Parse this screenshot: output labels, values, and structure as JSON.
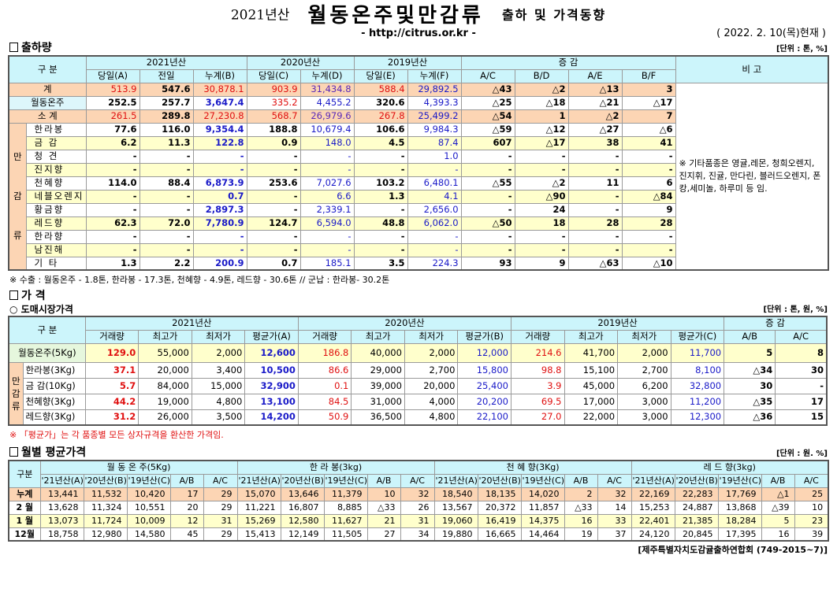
{
  "header": {
    "year": "2021년산",
    "main": "월동온주및만감류",
    "sub": "출하 및 가격동향",
    "url": "- http://citrus.or.kr -",
    "date": "( 2022. 2. 10(목)현재 )"
  },
  "shipment": {
    "section": "출하량",
    "unit": "[단위 : 톤, %]",
    "category_label": "구  분",
    "group_label": "만감류",
    "year_headers": [
      "2021년산",
      "2020년산",
      "2019년산",
      "증   감"
    ],
    "remark_header": "비 고",
    "col_headers": [
      "당일(A)",
      "전일",
      "누계(B)",
      "당일(C)",
      "누계(D)",
      "당일(E)",
      "누계(F)",
      "A/C",
      "B/D",
      "A/E",
      "B/F"
    ],
    "remark": "※ 기타품종은 영귤,레몬, 청희오렌지, 진지휘, 진귤, 만다린, 블러드오렌지, 폰캉,세미놀, 하루미 등 임.",
    "rows": [
      {
        "label": "계",
        "values": [
          "513.9",
          "547.6",
          "30,878.1",
          "903.9",
          "31,434.8",
          "588.4",
          "29,892.5",
          "△43",
          "△2",
          "△13",
          "3"
        ]
      },
      {
        "label": "월동온주",
        "values": [
          "252.5",
          "257.7",
          "3,647.4",
          "335.2",
          "4,455.2",
          "320.6",
          "4,393.3",
          "△25",
          "△18",
          "△21",
          "△17"
        ]
      },
      {
        "label": "소  계",
        "values": [
          "261.5",
          "289.8",
          "27,230.8",
          "568.7",
          "26,979.6",
          "267.8",
          "25,499.2",
          "△54",
          "1",
          "△2",
          "7"
        ]
      },
      {
        "label": "한라봉",
        "values": [
          "77.6",
          "116.0",
          "9,354.4",
          "188.8",
          "10,679.4",
          "106.6",
          "9,984.3",
          "△59",
          "△12",
          "△27",
          "△6"
        ]
      },
      {
        "label": "금  감",
        "values": [
          "6.2",
          "11.3",
          "122.8",
          "0.9",
          "148.0",
          "4.5",
          "87.4",
          "607",
          "△17",
          "38",
          "41"
        ]
      },
      {
        "label": "청  견",
        "values": [
          "-",
          "-",
          "-",
          "-",
          "-",
          "-",
          "1.0",
          "-",
          "-",
          "-",
          "-"
        ]
      },
      {
        "label": "진지향",
        "values": [
          "-",
          "-",
          "-",
          "-",
          "-",
          "-",
          "-",
          "-",
          "-",
          "-",
          "-"
        ]
      },
      {
        "label": "천혜향",
        "values": [
          "114.0",
          "88.4",
          "6,873.9",
          "253.6",
          "7,027.6",
          "103.2",
          "6,480.1",
          "△55",
          "△2",
          "11",
          "6"
        ]
      },
      {
        "label": "네블오렌지",
        "values": [
          "-",
          "-",
          "0.7",
          "-",
          "6.6",
          "1.3",
          "4.1",
          "-",
          "△90",
          "-",
          "△84"
        ]
      },
      {
        "label": "황금향",
        "values": [
          "-",
          "-",
          "2,897.3",
          "-",
          "2,339.1",
          "-",
          "2,656.0",
          "-",
          "24",
          "-",
          "9"
        ]
      },
      {
        "label": "레드향",
        "values": [
          "62.3",
          "72.0",
          "7,780.9",
          "124.7",
          "6,594.0",
          "48.8",
          "6,062.0",
          "△50",
          "18",
          "28",
          "28"
        ]
      },
      {
        "label": "한라향",
        "values": [
          "-",
          "-",
          "-",
          "-",
          "-",
          "-",
          "-",
          "-",
          "-",
          "-",
          "-"
        ]
      },
      {
        "label": "남진해",
        "values": [
          "-",
          "-",
          "-",
          "-",
          "-",
          "-",
          "-",
          "-",
          "-",
          "-",
          "-"
        ]
      },
      {
        "label": "기  타",
        "values": [
          "1.3",
          "2.2",
          "200.9",
          "0.7",
          "185.1",
          "3.5",
          "224.3",
          "93",
          "9",
          "△63",
          "△10"
        ]
      }
    ],
    "footnote": "※ 수출 :  월동온주 - 1.8톤,  한라봉 - 17.3톤,  천혜향 - 4.9톤,  레드향 - 30.6톤  //  군납 : 한라봉- 30.2톤"
  },
  "price": {
    "section": "가    격",
    "subsection": "○ 도매시장가격",
    "unit": "[단위 : 톤, 원, %]",
    "category_label": "구  분",
    "group_label": "만감류",
    "year_headers": [
      "2021년산",
      "2020년산",
      "2019년산",
      "증  감"
    ],
    "col_headers": [
      "거래량",
      "최고가",
      "최저가",
      "평균가(A)",
      "거래량",
      "최고가",
      "최저가",
      "평균가(B)",
      "거래량",
      "최고가",
      "최저가",
      "평균가(C)",
      "A/B",
      "A/C"
    ],
    "rows": [
      {
        "label": "월동온주(5Kg)",
        "values": [
          "129.0",
          "55,000",
          "2,000",
          "12,600",
          "186.8",
          "40,000",
          "2,000",
          "12,000",
          "214.6",
          "41,700",
          "2,000",
          "11,700",
          "5",
          "8"
        ]
      },
      {
        "label": "한라봉(3Kg)",
        "values": [
          "37.1",
          "20,000",
          "3,400",
          "10,500",
          "86.6",
          "29,000",
          "2,700",
          "15,800",
          "98.8",
          "15,100",
          "2,700",
          "8,100",
          "△34",
          "30"
        ]
      },
      {
        "label": "금 감(10Kg)",
        "values": [
          "5.7",
          "84,000",
          "15,000",
          "32,900",
          "0.1",
          "39,000",
          "20,000",
          "25,400",
          "3.9",
          "45,000",
          "6,200",
          "32,800",
          "30",
          "-"
        ]
      },
      {
        "label": "천혜향(3Kg)",
        "values": [
          "44.2",
          "19,000",
          "4,800",
          "13,100",
          "84.5",
          "31,000",
          "4,000",
          "20,200",
          "69.5",
          "17,000",
          "3,000",
          "11,200",
          "△35",
          "17"
        ]
      },
      {
        "label": "레드향(3Kg)",
        "values": [
          "31.2",
          "26,000",
          "3,500",
          "14,200",
          "50.9",
          "36,500",
          "4,800",
          "22,100",
          "27.0",
          "22,000",
          "3,000",
          "12,300",
          "△36",
          "15"
        ]
      }
    ],
    "footnote": "※ 「평균가」는 각 품종별 모든 상자규격을 환산한 가격임."
  },
  "monthly": {
    "section": "월별 평균가격",
    "unit": "[단위 : 원. %]",
    "category_label": "구분",
    "groups": [
      "월 동 온 주(5Kg)",
      "한 라 봉(3kg)",
      "천 혜 향(3Kg)",
      "레 드 향(3kg)"
    ],
    "col_headers": [
      "'21년산(A)",
      "'20년산(B)",
      "'19년산(C)",
      "A/B",
      "A/C"
    ],
    "rows": [
      {
        "label": "누계",
        "values": [
          "13,441",
          "11,532",
          "10,420",
          "17",
          "29",
          "15,070",
          "13,646",
          "11,379",
          "10",
          "32",
          "18,540",
          "18,135",
          "14,020",
          "2",
          "32",
          "22,169",
          "22,283",
          "17,769",
          "△1",
          "25"
        ]
      },
      {
        "label": "2 월",
        "values": [
          "13,628",
          "11,324",
          "10,551",
          "20",
          "29",
          "11,221",
          "16,807",
          "8,885",
          "△33",
          "26",
          "13,567",
          "20,372",
          "11,857",
          "△33",
          "14",
          "15,253",
          "24,887",
          "13,868",
          "△39",
          "10"
        ]
      },
      {
        "label": "1 월",
        "values": [
          "13,073",
          "11,724",
          "10,009",
          "12",
          "31",
          "15,269",
          "12,580",
          "11,627",
          "21",
          "31",
          "19,060",
          "16,419",
          "14,375",
          "16",
          "33",
          "22,401",
          "21,385",
          "18,284",
          "5",
          "23"
        ]
      },
      {
        "label": "12월",
        "values": [
          "18,758",
          "12,980",
          "14,580",
          "45",
          "29",
          "15,413",
          "12,149",
          "11,505",
          "27",
          "34",
          "19,880",
          "16,665",
          "14,464",
          "19",
          "37",
          "24,120",
          "20,845",
          "17,395",
          "16",
          "39"
        ]
      }
    ],
    "source": "[제주특별자치도감귤출하연합회 (749-2015~7)]"
  },
  "colors": {
    "header_bg": "#ccf5fb",
    "total_bg": "#fcd5b4",
    "alt_bg": "#ffffcc",
    "red": "#e01010",
    "blue": "#1a1ac8"
  }
}
